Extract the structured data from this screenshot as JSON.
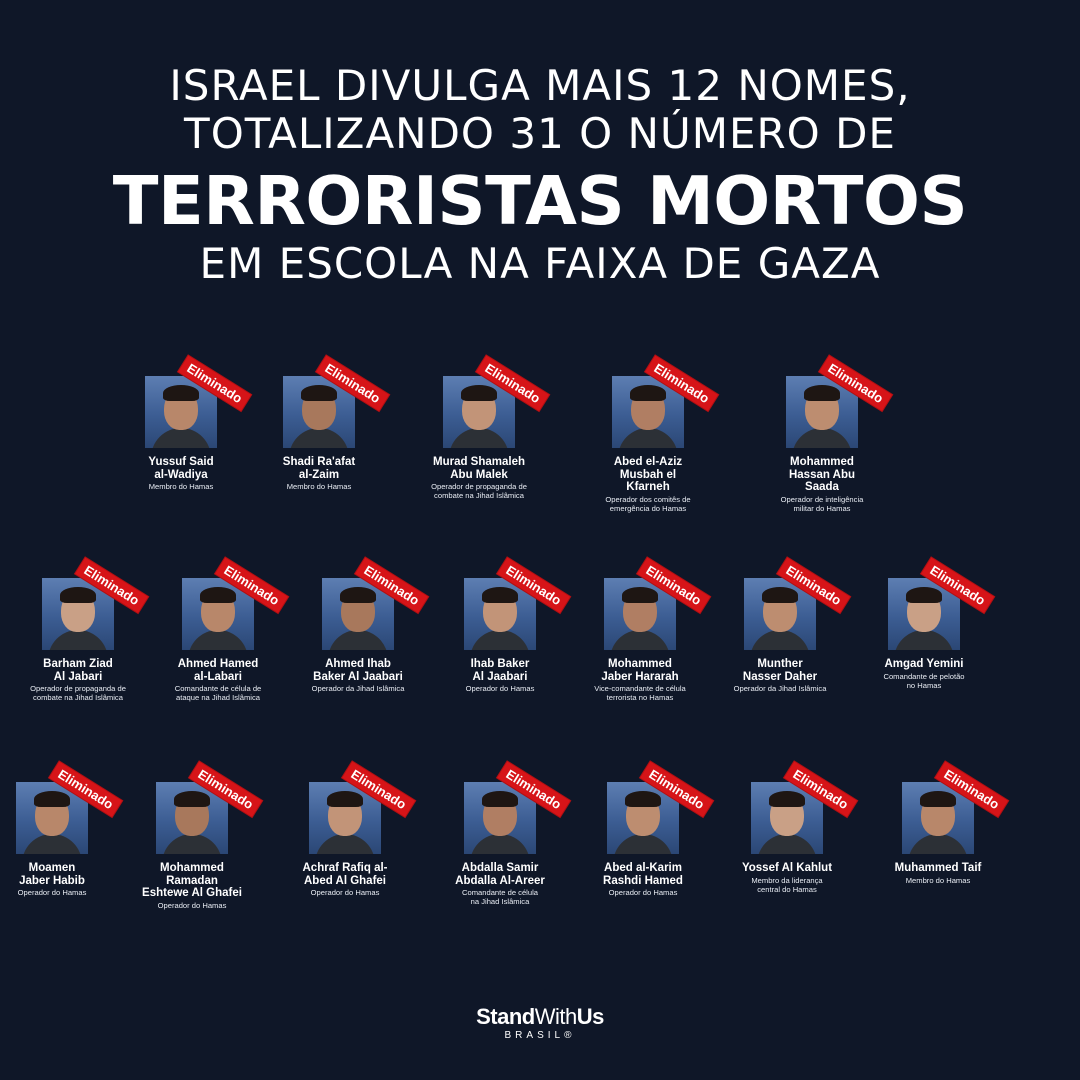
{
  "headline": {
    "line1": "ISRAEL DIVULGA MAIS 12 NOMES,",
    "line2": "TOTALIZANDO 31 O NÚMERO DE",
    "emphasis": "TERRORISTAS MORTOS",
    "line4": "EM ESCOLA NA FAIXA DE GAZA"
  },
  "badge_label": "Eliminado",
  "accent_color": "#d61418",
  "background_color": "#0f1728",
  "people": [
    {
      "name": "Yussuf Said\nal-Wadiya",
      "role": "Membro do Hamas"
    },
    {
      "name": "Shadi Ra'afat\nal-Zaim",
      "role": "Membro do Hamas"
    },
    {
      "name": "Murad Shamaleh\nAbu Malek",
      "role": "Operador de propaganda de\ncombate na Jihad Islâmica"
    },
    {
      "name": "Abed el-Aziz\nMusbah el\nKfarneh",
      "role": "Operador dos comitês de\nemergência do Hamas"
    },
    {
      "name": "Mohammed\nHassan Abu\nSaada",
      "role": "Operador de inteligência\nmilitar do Hamas"
    },
    {
      "name": "Barham Ziad\nAl Jabari",
      "role": "Operador de propaganda de\ncombate na Jihad Islâmica"
    },
    {
      "name": "Ahmed Hamed\nal-Labari",
      "role": "Comandante de célula de\nataque na Jihad Islâmica"
    },
    {
      "name": "Ahmed Ihab\nBaker Al Jaabari",
      "role": "Operador da Jihad Islâmica"
    },
    {
      "name": "Ihab Baker\nAl Jaabari",
      "role": "Operador do Hamas"
    },
    {
      "name": "Mohammed\nJaber Hararah",
      "role": "Vice-comandante de célula\nterrorista no Hamas"
    },
    {
      "name": "Munther\nNasser Daher",
      "role": "Operador da Jihad Islâmica"
    },
    {
      "name": "Amgad Yemini",
      "role": "Comandante de pelotão\nno Hamas"
    },
    {
      "name": "Moamen\nJaber Habib",
      "role": "Operador do Hamas"
    },
    {
      "name": "Mohammed\nRamadan\nEshtewe Al Ghafei",
      "role": "Operador do Hamas"
    },
    {
      "name": "Achraf Rafiq al-\nAbed Al Ghafei",
      "role": "Operador do Hamas"
    },
    {
      "name": "Abdalla Samir\nAbdalla Al-Areer",
      "role": "Comandante de célula\nna Jihad Islâmica"
    },
    {
      "name": "Abed al-Karim\nRashdi Hamed",
      "role": "Operador do Hamas"
    },
    {
      "name": "Yossef Al Kahlut",
      "role": "Membro da liderança\ncentral do Hamas"
    },
    {
      "name": "Muhammed Taif",
      "role": "Membro do Hamas"
    }
  ],
  "brand": {
    "name_bold": "Stand",
    "name_thin": "With",
    "name_bold2": "Us",
    "sub": "BRASIL®"
  }
}
